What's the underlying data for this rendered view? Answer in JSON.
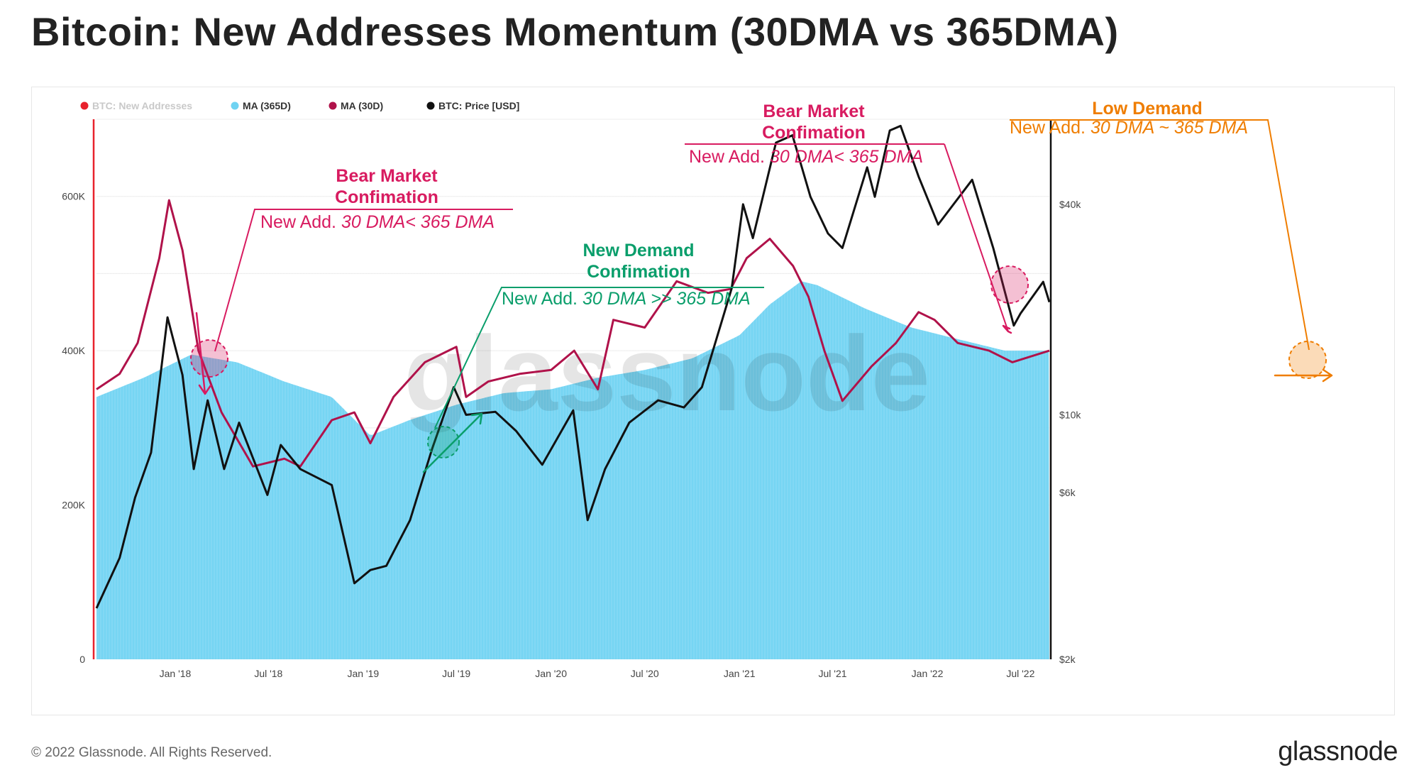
{
  "title": "Bitcoin: New Addresses Momentum (30DMA vs 365DMA)",
  "footer": {
    "copyright": "© 2022 Glassnode. All Rights Reserved.",
    "logo": "glassnode"
  },
  "watermark": "glassnode",
  "colors": {
    "ma365": "#6fd3f2",
    "ma30": "#b0124a",
    "price": "#111111",
    "new_addresses": "#e8222d",
    "annotation_bear": "#d81b60",
    "annotation_demand": "#0a9e6b",
    "annotation_low": "#ef7d00"
  },
  "chart_data": {
    "type": "area",
    "legend": [
      {
        "label": "BTC: New Addresses",
        "color": "#e8222d",
        "muted": true
      },
      {
        "label": "MA (365D)",
        "color": "#6fd3f2"
      },
      {
        "label": "MA (30D)",
        "color": "#b0124a"
      },
      {
        "label": "BTC: Price [USD]",
        "color": "#111111"
      }
    ],
    "x_ticks": [
      "Jan '18",
      "Jul '18",
      "Jan '19",
      "Jul '19",
      "Jan '20",
      "Jul '20",
      "Jan '21",
      "Jul '21",
      "Jan '22",
      "Jul '22"
    ],
    "x_range": [
      "2017-08-01",
      "2022-08-26"
    ],
    "y_left": {
      "ticks": [
        0,
        200000,
        400000,
        600000
      ],
      "tick_labels": [
        "0",
        "200K",
        "400K",
        "600K"
      ],
      "range": [
        0,
        700000
      ]
    },
    "y_right": {
      "scale": "log",
      "ticks": [
        2000,
        6000,
        10000,
        40000
      ],
      "tick_labels": [
        "$2k",
        "$6k",
        "$10k",
        "$40k"
      ],
      "range": [
        2000,
        70000
      ]
    },
    "series": [
      {
        "name": "MA (365D)",
        "type": "area",
        "axis": "left",
        "x": [
          "2017-08-01",
          "2017-11-01",
          "2018-02-01",
          "2018-05-01",
          "2018-08-01",
          "2018-11-01",
          "2019-01-15",
          "2019-04-01",
          "2019-07-01",
          "2019-10-01",
          "2020-01-01",
          "2020-04-01",
          "2020-07-01",
          "2020-10-01",
          "2021-01-01",
          "2021-03-01",
          "2021-05-01",
          "2021-06-01",
          "2021-09-01",
          "2021-12-01",
          "2022-03-01",
          "2022-06-01",
          "2022-08-26"
        ],
        "values": [
          340000,
          365000,
          395000,
          385000,
          360000,
          340000,
          290000,
          310000,
          330000,
          345000,
          350000,
          365000,
          375000,
          390000,
          420000,
          460000,
          490000,
          485000,
          455000,
          430000,
          415000,
          400000,
          400000
        ]
      },
      {
        "name": "MA (30D)",
        "type": "line",
        "axis": "left",
        "x": [
          "2017-08-01",
          "2017-09-15",
          "2017-10-20",
          "2017-12-01",
          "2017-12-20",
          "2018-01-15",
          "2018-02-15",
          "2018-04-01",
          "2018-06-01",
          "2018-08-01",
          "2018-09-01",
          "2018-11-01",
          "2018-12-15",
          "2019-01-15",
          "2019-03-01",
          "2019-05-01",
          "2019-07-01",
          "2019-07-20",
          "2019-09-01",
          "2019-11-01",
          "2020-01-01",
          "2020-02-15",
          "2020-04-01",
          "2020-05-01",
          "2020-07-01",
          "2020-09-01",
          "2020-11-01",
          "2020-12-15",
          "2021-01-15",
          "2021-03-01",
          "2021-04-15",
          "2021-05-15",
          "2021-06-15",
          "2021-07-20",
          "2021-09-15",
          "2021-11-01",
          "2021-12-15",
          "2022-01-15",
          "2022-03-01",
          "2022-05-01",
          "2022-06-15",
          "2022-08-26"
        ],
        "values": [
          350000,
          370000,
          410000,
          520000,
          595000,
          530000,
          400000,
          320000,
          250000,
          260000,
          250000,
          310000,
          320000,
          280000,
          340000,
          385000,
          405000,
          340000,
          360000,
          370000,
          375000,
          400000,
          350000,
          440000,
          430000,
          490000,
          475000,
          480000,
          520000,
          545000,
          510000,
          470000,
          400000,
          335000,
          380000,
          410000,
          450000,
          440000,
          410000,
          400000,
          385000,
          400000
        ]
      },
      {
        "name": "BTC: Price [USD]",
        "type": "line",
        "axis": "right",
        "x": [
          "2017-08-01",
          "2017-09-15",
          "2017-10-15",
          "2017-11-15",
          "2017-12-17",
          "2018-01-15",
          "2018-02-06",
          "2018-03-05",
          "2018-04-06",
          "2018-05-05",
          "2018-06-29",
          "2018-07-25",
          "2018-09-01",
          "2018-11-01",
          "2018-12-15",
          "2019-01-15",
          "2019-02-15",
          "2019-04-02",
          "2019-05-15",
          "2019-06-26",
          "2019-07-20",
          "2019-09-15",
          "2019-10-25",
          "2019-12-15",
          "2020-02-13",
          "2020-03-12",
          "2020-04-15",
          "2020-06-01",
          "2020-07-27",
          "2020-09-15",
          "2020-10-20",
          "2020-11-30",
          "2020-12-17",
          "2021-01-08",
          "2021-01-27",
          "2021-03-13",
          "2021-04-14",
          "2021-05-19",
          "2021-06-22",
          "2021-07-20",
          "2021-09-06",
          "2021-09-21",
          "2021-10-20",
          "2021-11-10",
          "2021-12-15",
          "2022-01-22",
          "2022-03-29",
          "2022-05-09",
          "2022-06-18",
          "2022-07-01",
          "2022-08-14",
          "2022-08-26"
        ],
        "values": [
          2800,
          3900,
          5800,
          7800,
          19000,
          13000,
          7000,
          11000,
          7000,
          9500,
          5900,
          8200,
          7000,
          6300,
          3300,
          3600,
          3700,
          5000,
          8000,
          12000,
          10000,
          10200,
          9000,
          7200,
          10300,
          5000,
          7000,
          9500,
          11000,
          10500,
          12000,
          19000,
          23000,
          40000,
          32000,
          60000,
          63000,
          42000,
          33000,
          30000,
          51000,
          42000,
          65000,
          67000,
          48000,
          35000,
          47000,
          30000,
          18000,
          19500,
          24000,
          21000
        ]
      }
    ],
    "annotations": [
      {
        "title": "Bear Market Confimation",
        "text_plain": "New Add. ",
        "text_italic": "30 DMA< 365 DMA",
        "date": "2018-02-15",
        "color": "#d81b60"
      },
      {
        "title": "New Demand Confimation",
        "text_plain": "New Add. ",
        "text_italic": "30 DMA >> 365 DMA",
        "date": "2019-01-15",
        "color": "#0a9e6b"
      },
      {
        "title": "Bear Market Confimation",
        "text_plain": "New Add. ",
        "text_italic": "30 DMA< 365 DMA",
        "date": "2021-05-20",
        "color": "#d81b60"
      },
      {
        "title": "Low Demand",
        "text_plain": "New Add. ",
        "text_italic": "30 DMA ~ 365 DMA",
        "date": "2022-08-10",
        "color": "#ef7d00"
      }
    ]
  }
}
